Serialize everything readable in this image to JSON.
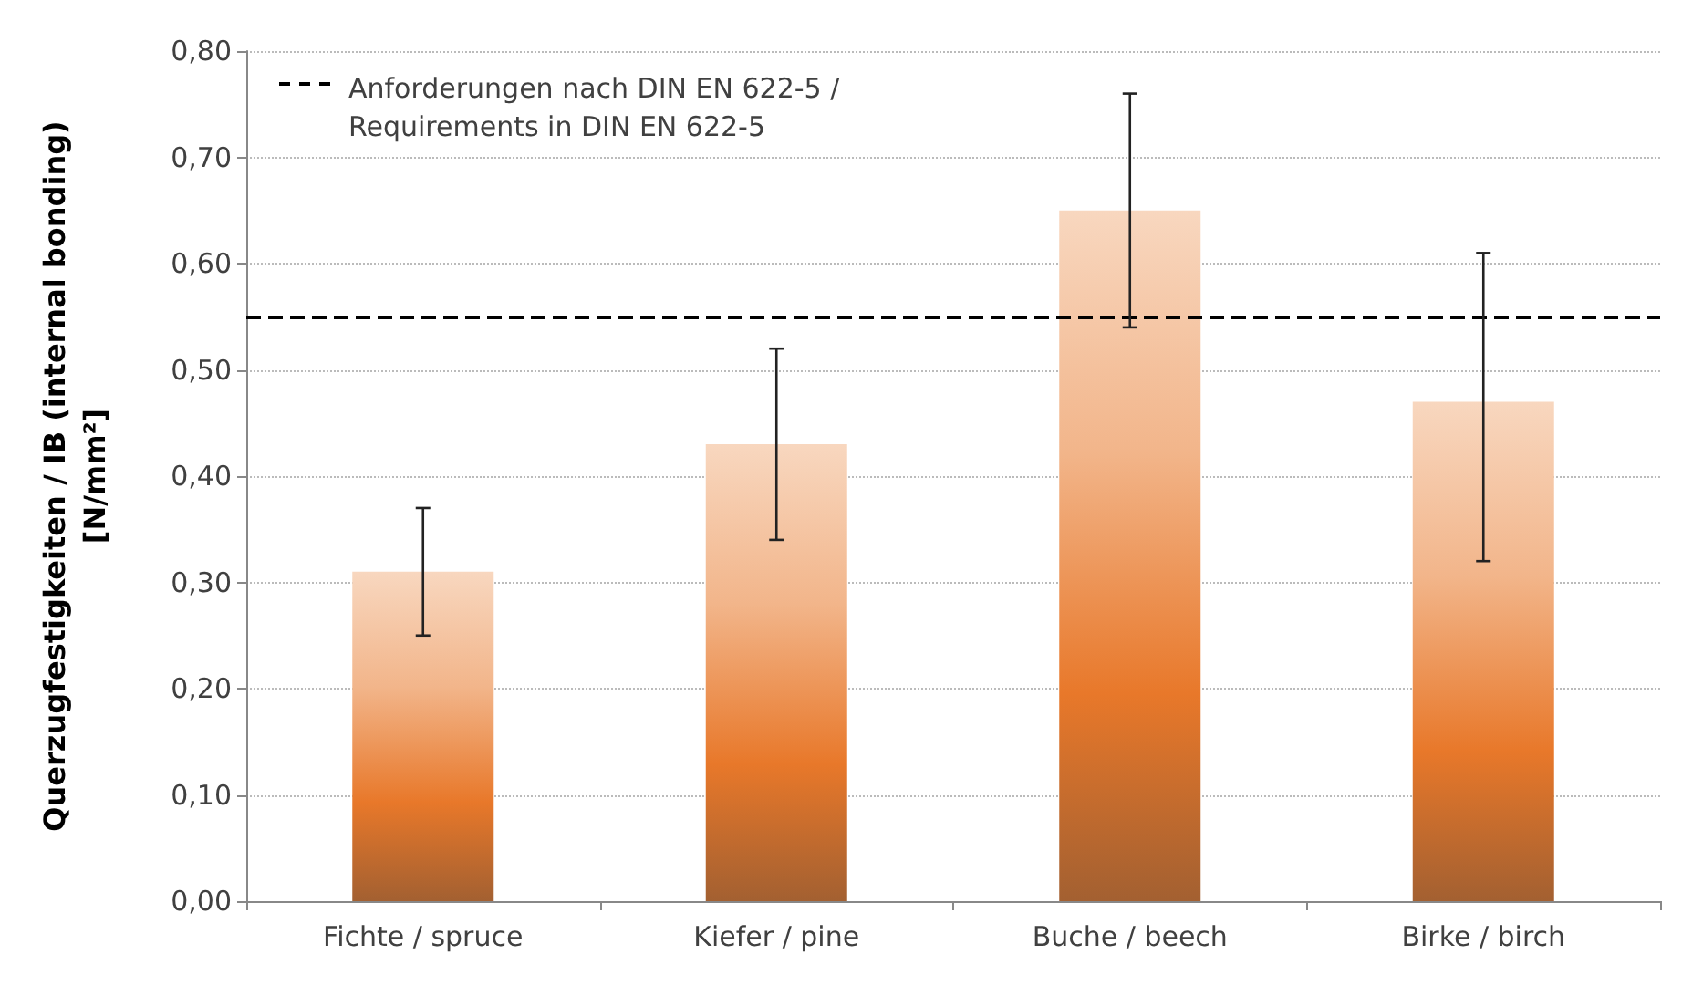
{
  "chart_data": {
    "type": "bar",
    "ylabel": "Querzugfestigkeiten / IB (internal bonding)\n[N/mm²]",
    "categories": [
      "Fichte / spruce",
      "Kiefer / pine",
      "Buche / beech",
      "Birke / birch"
    ],
    "values": [
      0.31,
      0.43,
      0.65,
      0.47
    ],
    "errors": [
      [
        0.25,
        0.37
      ],
      [
        0.34,
        0.52
      ],
      [
        0.54,
        0.76
      ],
      [
        0.32,
        0.61
      ]
    ],
    "color": "#e8782a",
    "ylim": [
      0,
      0.8
    ],
    "yticks": [
      {
        "value": 0,
        "label": "0,00"
      },
      {
        "value": 0.1,
        "label": "0,10"
      },
      {
        "value": 0.2,
        "label": "0,20"
      },
      {
        "value": 0.3,
        "label": "0,30"
      },
      {
        "value": 0.4,
        "label": "0,40"
      },
      {
        "value": 0.5,
        "label": "0,50"
      },
      {
        "value": 0.6,
        "label": "0,60"
      },
      {
        "value": 0.7,
        "label": "0,70"
      },
      {
        "value": 0.8,
        "label": "0,80"
      }
    ],
    "ref_lines": [
      {
        "axis": "y",
        "value": 0.55,
        "label": "Anforderungen nach DIN EN 622-5 /\nRequirements in DIN EN 622-5",
        "color": "#000000",
        "line_style": "dashed"
      }
    ],
    "grid": "y",
    "legend": "top left"
  }
}
